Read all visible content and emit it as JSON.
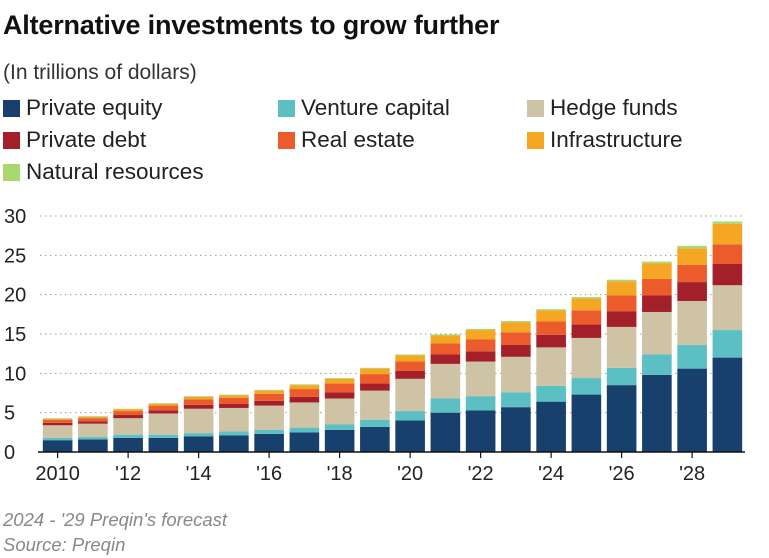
{
  "header": {
    "title": "Alternative investments to grow further",
    "subtitle": "(In trillions of dollars)"
  },
  "footer": {
    "note": "2024 - '29 Preqin's forecast",
    "source": "Source: Preqin"
  },
  "chart_data": {
    "type": "bar",
    "stacked": true,
    "categories": [
      "2010",
      "2011",
      "2012",
      "2013",
      "2014",
      "2015",
      "2016",
      "2017",
      "2018",
      "2019",
      "2020",
      "2021",
      "2022",
      "2023",
      "2024",
      "2025",
      "2026",
      "2027",
      "2028",
      "2029"
    ],
    "x_tick_labels": [
      "2010",
      "'12",
      "'14",
      "'16",
      "'18",
      "'20",
      "'22",
      "'24",
      "'26",
      "'28"
    ],
    "y_ticks": [
      "0",
      "5",
      "10",
      "15",
      "20",
      "25",
      "30"
    ],
    "ylim": [
      0,
      30
    ],
    "grid": true,
    "legend_position": "top",
    "series": [
      {
        "name": "Private equity",
        "color": "#17406d",
        "values": [
          1.5,
          1.6,
          1.8,
          1.8,
          2.0,
          2.1,
          2.3,
          2.5,
          2.8,
          3.2,
          4.0,
          5.0,
          5.3,
          5.7,
          6.4,
          7.3,
          8.5,
          9.8,
          10.6,
          12.0
        ]
      },
      {
        "name": "Venture capital",
        "color": "#5bbfc3",
        "values": [
          0.3,
          0.3,
          0.4,
          0.4,
          0.4,
          0.5,
          0.5,
          0.6,
          0.7,
          0.9,
          1.2,
          1.8,
          1.8,
          1.9,
          2.0,
          2.1,
          2.2,
          2.6,
          3.0,
          3.5
        ]
      },
      {
        "name": "Hedge funds",
        "color": "#cec3a5",
        "values": [
          1.6,
          1.7,
          2.1,
          2.7,
          3.1,
          3.0,
          3.1,
          3.2,
          3.3,
          3.7,
          4.1,
          4.4,
          4.4,
          4.5,
          4.9,
          5.1,
          5.2,
          5.4,
          5.6,
          5.7
        ]
      },
      {
        "name": "Private debt",
        "color": "#a31f2a",
        "values": [
          0.3,
          0.3,
          0.4,
          0.4,
          0.5,
          0.5,
          0.6,
          0.7,
          0.8,
          0.9,
          1.0,
          1.2,
          1.3,
          1.5,
          1.6,
          1.7,
          2.0,
          2.1,
          2.4,
          2.7
        ]
      },
      {
        "name": "Real estate",
        "color": "#ec5b2c",
        "values": [
          0.4,
          0.4,
          0.5,
          0.6,
          0.7,
          0.8,
          0.9,
          1.0,
          1.1,
          1.2,
          1.2,
          1.4,
          1.5,
          1.6,
          1.7,
          1.8,
          2.0,
          2.1,
          2.2,
          2.5
        ]
      },
      {
        "name": "Infrastructure",
        "color": "#f5a623",
        "values": [
          0.1,
          0.15,
          0.2,
          0.2,
          0.3,
          0.3,
          0.4,
          0.5,
          0.6,
          0.7,
          0.8,
          1.0,
          1.2,
          1.3,
          1.4,
          1.5,
          1.8,
          2.0,
          2.1,
          2.6
        ]
      },
      {
        "name": "Natural resources",
        "color": "#a8d86e",
        "values": [
          0.1,
          0.1,
          0.1,
          0.1,
          0.1,
          0.1,
          0.1,
          0.1,
          0.1,
          0.1,
          0.1,
          0.15,
          0.15,
          0.15,
          0.15,
          0.2,
          0.2,
          0.2,
          0.3,
          0.3
        ]
      }
    ]
  }
}
